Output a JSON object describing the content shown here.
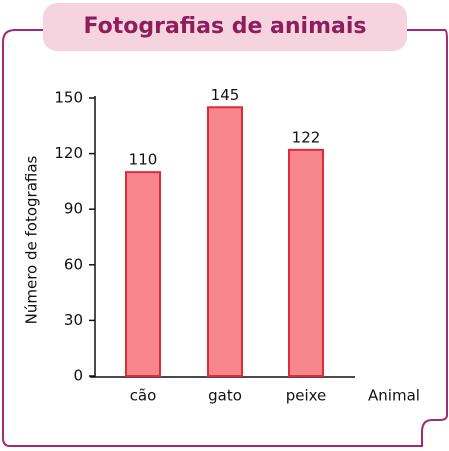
{
  "chart_data": {
    "type": "bar",
    "title": "Fotografias de animais",
    "x_label": "Animal",
    "y_label": "Número de fotografias",
    "categories": [
      "cão",
      "gato",
      "peixe"
    ],
    "values": [
      110,
      145,
      122
    ],
    "color": "#f7878d",
    "edge_color": "#e12a38",
    "ylim": [
      0,
      150
    ],
    "yticks": [
      0,
      30,
      60,
      90,
      120,
      150
    ],
    "grid": false
  }
}
